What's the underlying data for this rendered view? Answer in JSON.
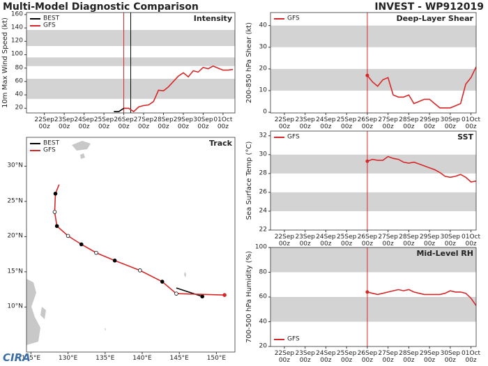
{
  "header": {
    "title": "Multi-Model Diagnostic Comparison",
    "subtitle": "INVEST - WP912019",
    "logo": "CIRA"
  },
  "chart_data": [
    {
      "type": "line",
      "title": "Intensity",
      "ylabel": "10m Max Wind Speed (kt)",
      "xlim": [
        -0.9,
        9.6
      ],
      "ylim": [
        13,
        163
      ],
      "yticks": [
        20,
        40,
        60,
        80,
        100,
        120,
        140,
        160
      ],
      "xticks": [
        {
          "value": 0,
          "label": "22Sep 00z"
        },
        {
          "value": 1,
          "label": "23Sep 00z"
        },
        {
          "value": 2,
          "label": "24Sep 00z"
        },
        {
          "value": 3,
          "label": "25Sep 00z"
        },
        {
          "value": 4,
          "label": "26Sep 00z"
        },
        {
          "value": 5,
          "label": "27Sep 00z"
        },
        {
          "value": 6,
          "label": "28Sep 00z"
        },
        {
          "value": 7,
          "label": "29Sep 00z"
        },
        {
          "value": 8,
          "label": "30Sep 00z"
        },
        {
          "value": 9,
          "label": "01Oct 00z"
        }
      ],
      "bands": [
        [
          34,
          64
        ],
        [
          83,
          96
        ],
        [
          113,
          137
        ]
      ],
      "vlines": [
        {
          "x": 4,
          "color": "#d62728"
        },
        {
          "x": 4.35,
          "color": "#000000"
        }
      ],
      "legend": "upper left",
      "start_dot": false,
      "series": [
        {
          "name": "BEST",
          "color": "#000000",
          "x": [
            3.5,
            3.75,
            4,
            4.25
          ],
          "values": [
            15,
            15,
            20,
            20
          ]
        },
        {
          "name": "GFS",
          "color": "#d62728",
          "x": [
            4,
            4.25,
            4.5,
            4.75,
            5,
            5.25,
            5.5,
            5.75,
            6,
            6.25,
            6.5,
            6.75,
            7,
            7.25,
            7.5,
            7.75,
            8,
            8.25,
            8.5,
            8.75,
            9,
            9.25,
            9.5
          ],
          "values": [
            20,
            20,
            15,
            22,
            24,
            25,
            30,
            47,
            46,
            52,
            60,
            68,
            73,
            67,
            76,
            74,
            81,
            79,
            83,
            80,
            77,
            77,
            78
          ]
        }
      ]
    },
    {
      "type": "line",
      "title": "Deep-Layer Shear",
      "ylabel": "200-850 hPa Shear (kt)",
      "xlim": [
        -0.67,
        9.25
      ],
      "ylim": [
        -0.3,
        46
      ],
      "yticks": [
        0,
        10,
        20,
        30,
        40
      ],
      "xticks": [
        {
          "value": 0,
          "label": "22Sep 00z"
        },
        {
          "value": 1,
          "label": "23Sep 00z"
        },
        {
          "value": 2,
          "label": "24Sep 00z"
        },
        {
          "value": 3,
          "label": "25Sep 00z"
        },
        {
          "value": 4,
          "label": "26Sep 00z"
        },
        {
          "value": 5,
          "label": "27Sep 00z"
        },
        {
          "value": 6,
          "label": "28Sep 00z"
        },
        {
          "value": 7,
          "label": "29Sep 00z"
        },
        {
          "value": 8,
          "label": "30Sep 00z"
        },
        {
          "value": 9,
          "label": "01Oct 00z"
        }
      ],
      "bands": [
        [
          10,
          20
        ],
        [
          30,
          40
        ]
      ],
      "vlines": [
        {
          "x": 4,
          "color": "#d62728"
        }
      ],
      "legend": "upper left",
      "start_dot": true,
      "series": [
        {
          "name": "GFS",
          "color": "#d62728",
          "x": [
            4,
            4.25,
            4.5,
            4.75,
            5,
            5.25,
            5.5,
            5.75,
            6,
            6.25,
            6.5,
            6.75,
            7,
            7.25,
            7.5,
            7.75,
            8,
            8.25,
            8.5,
            8.75,
            9,
            9.25
          ],
          "values": [
            17,
            14,
            12,
            15,
            16,
            8,
            7,
            7,
            8,
            4,
            5,
            6,
            6,
            4,
            2,
            2,
            2,
            3,
            4,
            13,
            16,
            21
          ]
        }
      ]
    },
    {
      "type": "line",
      "title": "SST",
      "ylabel": "Sea Surface Temp (°C)",
      "xlim": [
        -0.67,
        9.25
      ],
      "ylim": [
        22,
        32.5
      ],
      "yticks": [
        22,
        24,
        26,
        28,
        30,
        32
      ],
      "xticks": [
        {
          "value": 0,
          "label": "22Sep 00z"
        },
        {
          "value": 1,
          "label": "23Sep 00z"
        },
        {
          "value": 2,
          "label": "24Sep 00z"
        },
        {
          "value": 3,
          "label": "25Sep 00z"
        },
        {
          "value": 4,
          "label": "26Sep 00z"
        },
        {
          "value": 5,
          "label": "27Sep 00z"
        },
        {
          "value": 6,
          "label": "28Sep 00z"
        },
        {
          "value": 7,
          "label": "29Sep 00z"
        },
        {
          "value": 8,
          "label": "30Sep 00z"
        },
        {
          "value": 9,
          "label": "01Oct 00z"
        }
      ],
      "bands": [
        [
          24,
          26
        ],
        [
          28,
          30
        ]
      ],
      "vlines": [
        {
          "x": 4,
          "color": "#d62728"
        }
      ],
      "legend": "upper left",
      "start_dot": true,
      "series": [
        {
          "name": "GFS",
          "color": "#d62728",
          "x": [
            4,
            4.25,
            4.5,
            4.75,
            5,
            5.25,
            5.5,
            5.75,
            6,
            6.25,
            6.5,
            6.75,
            7,
            7.25,
            7.5,
            7.75,
            8,
            8.25,
            8.5,
            8.75,
            9,
            9.25
          ],
          "values": [
            29.3,
            29.5,
            29.4,
            29.4,
            29.8,
            29.6,
            29.5,
            29.2,
            29.1,
            29.2,
            29.0,
            28.8,
            28.6,
            28.4,
            28.1,
            27.7,
            27.6,
            27.7,
            27.9,
            27.6,
            27.1,
            27.2
          ]
        }
      ]
    },
    {
      "type": "line",
      "title": "Mid-Level RH",
      "ylabel": "700-500 hPa Humidity (%)",
      "xlim": [
        -0.67,
        9.25
      ],
      "ylim": [
        20,
        100
      ],
      "yticks": [
        20,
        40,
        60,
        80,
        100
      ],
      "xticks": [
        {
          "value": 0,
          "label": "22Sep 00z"
        },
        {
          "value": 1,
          "label": "23Sep 00z"
        },
        {
          "value": 2,
          "label": "24Sep 00z"
        },
        {
          "value": 3,
          "label": "25Sep 00z"
        },
        {
          "value": 4,
          "label": "26Sep 00z"
        },
        {
          "value": 5,
          "label": "27Sep 00z"
        },
        {
          "value": 6,
          "label": "28Sep 00z"
        },
        {
          "value": 7,
          "label": "29Sep 00z"
        },
        {
          "value": 8,
          "label": "30Sep 00z"
        },
        {
          "value": 9,
          "label": "01Oct 00z"
        }
      ],
      "bands": [
        [
          40,
          60
        ],
        [
          80,
          100
        ]
      ],
      "vlines": [
        {
          "x": 4,
          "color": "#d62728"
        }
      ],
      "legend": "lower left",
      "start_dot": true,
      "series": [
        {
          "name": "GFS",
          "color": "#d62728",
          "x": [
            4,
            4.25,
            4.5,
            4.75,
            5,
            5.25,
            5.5,
            5.75,
            6,
            6.25,
            6.5,
            6.75,
            7,
            7.25,
            7.5,
            7.75,
            8,
            8.25,
            8.5,
            8.75,
            9,
            9.25
          ],
          "values": [
            64,
            63,
            62,
            63,
            64,
            65,
            66,
            65,
            66,
            64,
            63,
            62,
            62,
            62,
            62,
            63,
            65,
            64,
            64,
            63,
            59,
            53
          ]
        }
      ]
    },
    {
      "type": "track",
      "title": "Track",
      "xlim": [
        124.4,
        152.5
      ],
      "ylim": [
        3.6,
        34.1
      ],
      "xticks": [
        {
          "value": 125,
          "label": "125°E"
        },
        {
          "value": 130,
          "label": "130°E"
        },
        {
          "value": 135,
          "label": "135°E"
        },
        {
          "value": 140,
          "label": "140°E"
        },
        {
          "value": 145,
          "label": "145°E"
        },
        {
          "value": 150,
          "label": "150°E"
        }
      ],
      "yticks": [
        {
          "value": 10,
          "label": "10°N"
        },
        {
          "value": 15,
          "label": "15°N"
        },
        {
          "value": 20,
          "label": "20°N"
        },
        {
          "value": 25,
          "label": "25°N"
        },
        {
          "value": 30,
          "label": "30°N"
        }
      ],
      "legend": "upper left",
      "series": [
        {
          "name": "BEST",
          "color": "#000000",
          "x": [
            144.6,
            148.1
          ],
          "values": [
            12.7,
            11.5
          ]
        },
        {
          "name": "GFS",
          "color": "#d62728",
          "x": [
            151.1,
            144.6,
            142.7,
            139.7,
            136.3,
            133.8,
            131.8,
            130.0,
            128.5,
            128.2,
            128.3,
            128.8
          ],
          "values": [
            11.7,
            11.9,
            13.6,
            15.2,
            16.6,
            17.7,
            18.9,
            20.1,
            21.5,
            23.5,
            26.1,
            27.4
          ]
        }
      ]
    }
  ]
}
